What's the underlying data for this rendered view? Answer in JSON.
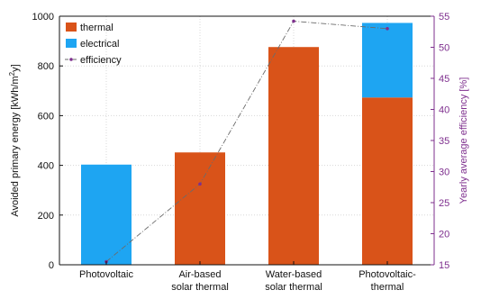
{
  "chart_data": {
    "type": "bar",
    "stacked": true,
    "categories": [
      [
        "Photovoltaic"
      ],
      [
        "Air-based",
        "solar thermal"
      ],
      [
        "Water-based",
        "solar thermal"
      ],
      [
        "Photovoltaic-",
        "thermal"
      ]
    ],
    "series": [
      {
        "name": "thermal",
        "color": "#d95319",
        "values": [
          0,
          452,
          876,
          673
        ]
      },
      {
        "name": "electrical",
        "color": "#1ea5f2",
        "values": [
          403,
          0,
          0,
          300
        ]
      }
    ],
    "line_series": {
      "name": "efficiency",
      "color": "#7e2f8e",
      "values": [
        15.5,
        28,
        54.2,
        53
      ],
      "axis": "right"
    },
    "ylabel": "Avoided primary energy [kWh/m²y]",
    "ylabel_parts": {
      "main": "Avoided primary energy [kWh/m",
      "sup": "2",
      "tail": "y]"
    },
    "y2label": "Yearly average efficiency [%]",
    "ylim": [
      0,
      1000
    ],
    "y2lim": [
      15,
      55
    ],
    "yticks": [
      0,
      200,
      400,
      600,
      800,
      1000
    ],
    "y2ticks": [
      15,
      20,
      25,
      30,
      35,
      40,
      45,
      50,
      55
    ],
    "grid": true,
    "legend_position": "top-left",
    "left_axis_color": "#111111",
    "right_axis_color": "#7e2f8e"
  }
}
